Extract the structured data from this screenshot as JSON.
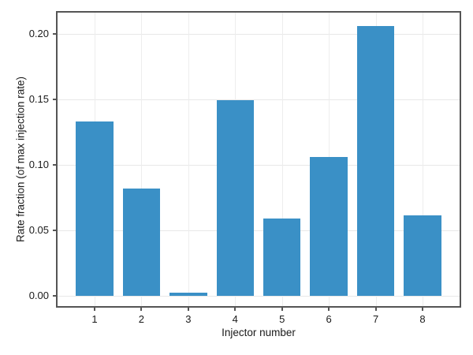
{
  "chart_data": {
    "type": "bar",
    "title": "",
    "xlabel": "Injector number",
    "ylabel": "Rate fraction (of max injection rate)",
    "categories": [
      "1",
      "2",
      "3",
      "4",
      "5",
      "6",
      "7",
      "8"
    ],
    "values": [
      0.133,
      0.082,
      0.002,
      0.149,
      0.059,
      0.106,
      0.206,
      0.061
    ],
    "yticks": [
      0,
      0.05,
      0.1,
      0.15,
      0.2
    ],
    "ytick_labels": [
      "0.00",
      "0.05",
      "0.10",
      "0.15",
      "0.20"
    ],
    "xlim": [
      0.21,
      8.79
    ],
    "ylim": [
      -0.008,
      0.216
    ],
    "bar_width_units": 0.8,
    "grid": true,
    "legend": "none",
    "colors": {
      "bar": "#3a90c6",
      "spine": "#555555",
      "grid": "#e8e8e8",
      "text": "#1a1a1a",
      "background": "#ffffff"
    }
  }
}
